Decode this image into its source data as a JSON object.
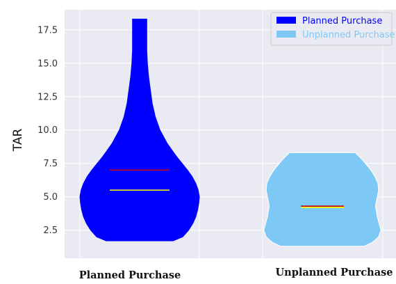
{
  "chart_data": {
    "type": "violin",
    "ylabel": "TAR",
    "ylim": [
      0.4,
      19.0
    ],
    "yticks": [
      2.5,
      5.0,
      7.5,
      10.0,
      12.5,
      15.0,
      17.5
    ],
    "ytick_labels": [
      "2.5",
      "5.0",
      "7.5",
      "10.0",
      "12.5",
      "15.0",
      "17.5"
    ],
    "categories": [
      "Planned Purchase",
      "Unplanned Purchase"
    ],
    "grid": true,
    "legend_position": "top-right",
    "series": [
      {
        "name": "Planned Purchase",
        "color": "#0000ff",
        "min": 1.7,
        "max": 18.3,
        "mean": 7.0,
        "median": 5.5,
        "profile": [
          [
            1.7,
            0.56
          ],
          [
            2.0,
            0.72
          ],
          [
            2.5,
            0.82
          ],
          [
            3.0,
            0.89
          ],
          [
            3.5,
            0.94
          ],
          [
            4.0,
            0.97
          ],
          [
            4.5,
            0.99
          ],
          [
            5.0,
            1.0
          ],
          [
            5.5,
            0.98
          ],
          [
            6.0,
            0.94
          ],
          [
            6.5,
            0.88
          ],
          [
            7.0,
            0.8
          ],
          [
            7.5,
            0.71
          ],
          [
            8.0,
            0.62
          ],
          [
            8.5,
            0.54
          ],
          [
            9.0,
            0.46
          ],
          [
            9.5,
            0.4
          ],
          [
            10.0,
            0.34
          ],
          [
            11.0,
            0.26
          ],
          [
            12.0,
            0.21
          ],
          [
            13.0,
            0.18
          ],
          [
            14.0,
            0.15
          ],
          [
            15.0,
            0.13
          ],
          [
            16.0,
            0.12
          ],
          [
            17.0,
            0.12
          ],
          [
            18.3,
            0.12
          ]
        ]
      },
      {
        "name": "Unplanned Purchase",
        "color": "#7ec8f5",
        "min": 1.3,
        "max": 8.3,
        "mean": 4.3,
        "median": 4.2,
        "profile": [
          [
            1.3,
            0.7
          ],
          [
            1.6,
            0.84
          ],
          [
            2.0,
            0.94
          ],
          [
            2.5,
            0.98
          ],
          [
            3.0,
            0.95
          ],
          [
            3.5,
            0.92
          ],
          [
            4.0,
            0.9
          ],
          [
            4.3,
            0.89
          ],
          [
            4.6,
            0.9
          ],
          [
            5.0,
            0.92
          ],
          [
            5.5,
            0.94
          ],
          [
            6.0,
            0.93
          ],
          [
            6.5,
            0.88
          ],
          [
            7.0,
            0.81
          ],
          [
            7.5,
            0.72
          ],
          [
            8.0,
            0.62
          ],
          [
            8.3,
            0.55
          ]
        ]
      }
    ],
    "mean_line_color": "#cc0000",
    "median_line_color": "#ffff00"
  }
}
